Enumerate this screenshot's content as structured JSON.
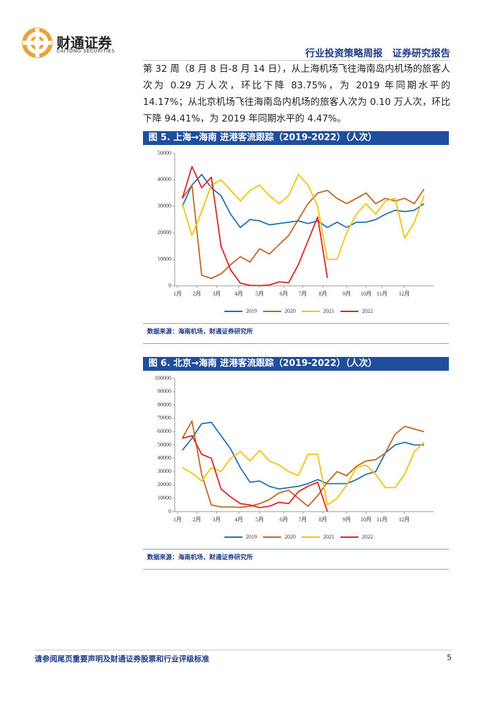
{
  "header": {
    "logo_cn": "财通证券",
    "logo_en": "CAITONG SECURITIES",
    "report": "行业投资策略周报　证券研究报告"
  },
  "paragraph": "第 32 周（8 月 8 日-8 月 14 日），从上海机场飞往海南岛内机场的旅客人次为 0.29 万人次，环比下降 83.75%，为 2019 年同期水平的 14.17%；从北京机场飞往海南岛内机场的旅客人次为 0.10 万人次，环比下降 94.41%，为 2019 年同期水平的 4.47%。",
  "chart_data": [
    {
      "type": "line",
      "title": "图 5. 上海→海南 进港客流跟踪（2019-2022）（人次）",
      "source": "数据来源：海南机场，财通证券研究所",
      "x": [
        2,
        4,
        6,
        8,
        10,
        12,
        14,
        16,
        18,
        20,
        22,
        24,
        26,
        28,
        30,
        32,
        34,
        36,
        38,
        40,
        42,
        44,
        46,
        48,
        50,
        52
      ],
      "xlim": [
        1,
        54
      ],
      "xticks": [
        {
          "value": 1,
          "label": "1月"
        },
        {
          "value": 5,
          "label": "2月"
        },
        {
          "value": 9.1,
          "label": "3月"
        },
        {
          "value": 13.7,
          "label": "4月"
        },
        {
          "value": 18,
          "label": "5月"
        },
        {
          "value": 23,
          "label": "6月"
        },
        {
          "value": 26.9,
          "label": "7月"
        },
        {
          "value": 31.1,
          "label": "8月"
        },
        {
          "value": 36,
          "label": "9月"
        },
        {
          "value": 40,
          "label": "10月"
        },
        {
          "value": 43.3,
          "label": "11月"
        },
        {
          "value": 47.9,
          "label": "12月"
        }
      ],
      "ylim": [
        0,
        50000
      ],
      "yticks": [
        0,
        10000,
        20000,
        30000,
        40000,
        50000
      ],
      "series": [
        {
          "name": "2019",
          "color": "#1f6fb5",
          "values": [
            30000,
            38000,
            42000,
            37000,
            34000,
            27000,
            22000,
            25000,
            24500,
            23000,
            23500,
            24000,
            24500,
            23500,
            24500,
            22000,
            24000,
            22000,
            24000,
            24000,
            25000,
            27000,
            28500,
            28000,
            28500,
            31000
          ]
        },
        {
          "name": "2020",
          "color": "#c0651e",
          "values": [
            33000,
            38000,
            4000,
            2800,
            4500,
            8000,
            11000,
            9000,
            14000,
            12000,
            15500,
            19000,
            25000,
            31000,
            35000,
            36000,
            33000,
            31000,
            33000,
            35000,
            31000,
            33000,
            32000,
            33000,
            31000,
            36500
          ]
        },
        {
          "name": "2021",
          "color": "#f5c200",
          "values": [
            31000,
            19000,
            28000,
            38000,
            40000,
            36000,
            32000,
            36000,
            38000,
            34000,
            31000,
            34000,
            42000,
            38000,
            30000,
            10000,
            10000,
            20000,
            27000,
            31000,
            27000,
            32000,
            33000,
            18000,
            24000,
            34000
          ]
        },
        {
          "name": "2022",
          "color": "#e02020",
          "values": [
            33000,
            45000,
            37000,
            41000,
            15000,
            6000,
            1000,
            200,
            100,
            300,
            1500,
            1200,
            8000,
            17000,
            26000,
            3000,
            null,
            null,
            null,
            null,
            null,
            null,
            null,
            null,
            null,
            null
          ]
        }
      ]
    },
    {
      "type": "line",
      "title": "图 6. 北京→海南 进港客流跟踪（2019-2022）（人次）",
      "source": "数据来源：海南机场，财通证券研究所",
      "x": [
        2,
        4,
        6,
        8,
        10,
        12,
        14,
        16,
        18,
        20,
        22,
        24,
        26,
        28,
        30,
        32,
        34,
        36,
        38,
        40,
        42,
        44,
        46,
        48,
        50,
        52
      ],
      "xlim": [
        1,
        54
      ],
      "xticks": [
        {
          "value": 1,
          "label": "1月"
        },
        {
          "value": 5,
          "label": "2月"
        },
        {
          "value": 9.1,
          "label": "3月"
        },
        {
          "value": 13.7,
          "label": "4月"
        },
        {
          "value": 18,
          "label": "5月"
        },
        {
          "value": 23,
          "label": "6月"
        },
        {
          "value": 26.9,
          "label": "7月"
        },
        {
          "value": 31.1,
          "label": "8月"
        },
        {
          "value": 36,
          "label": "9月"
        },
        {
          "value": 40,
          "label": "10月"
        },
        {
          "value": 43.3,
          "label": "11月"
        },
        {
          "value": 47.9,
          "label": "12月"
        }
      ],
      "ylim": [
        0,
        100000
      ],
      "yticks": [
        0,
        10000,
        20000,
        30000,
        40000,
        50000,
        60000,
        70000,
        80000,
        90000,
        100000
      ],
      "series": [
        {
          "name": "2019",
          "color": "#1f6fb5",
          "values": [
            46000,
            55000,
            66000,
            67000,
            57000,
            47000,
            33000,
            22000,
            23000,
            19000,
            17000,
            18000,
            19000,
            21000,
            24000,
            21000,
            21000,
            21000,
            24000,
            28000,
            30000,
            44000,
            50000,
            52000,
            50000,
            50000
          ]
        },
        {
          "name": "2020",
          "color": "#c0651e",
          "values": [
            55000,
            68000,
            28000,
            5000,
            3500,
            3500,
            3200,
            4000,
            6000,
            9000,
            14000,
            16000,
            10000,
            4000,
            12000,
            22000,
            30000,
            27000,
            34000,
            38000,
            39000,
            44000,
            58000,
            64000,
            62000,
            60000
          ]
        },
        {
          "name": "2021",
          "color": "#f5c200",
          "values": [
            33000,
            29000,
            23000,
            33000,
            30000,
            40000,
            45000,
            38000,
            46000,
            38000,
            35000,
            30000,
            27000,
            43000,
            43000,
            5000,
            10000,
            20000,
            33000,
            35000,
            28000,
            18000,
            18000,
            28000,
            45000,
            52000
          ]
        },
        {
          "name": "2022",
          "color": "#e02020",
          "values": [
            55000,
            57000,
            43000,
            40000,
            17000,
            11000,
            6000,
            5000,
            3000,
            4000,
            7000,
            6000,
            15000,
            19000,
            22000,
            0,
            null,
            null,
            null,
            null,
            null,
            null,
            null,
            null,
            null,
            null
          ]
        }
      ]
    }
  ],
  "footer": {
    "note": "请参阅尾页重要声明及财通证券股票和行业评级标准",
    "page": "5"
  }
}
